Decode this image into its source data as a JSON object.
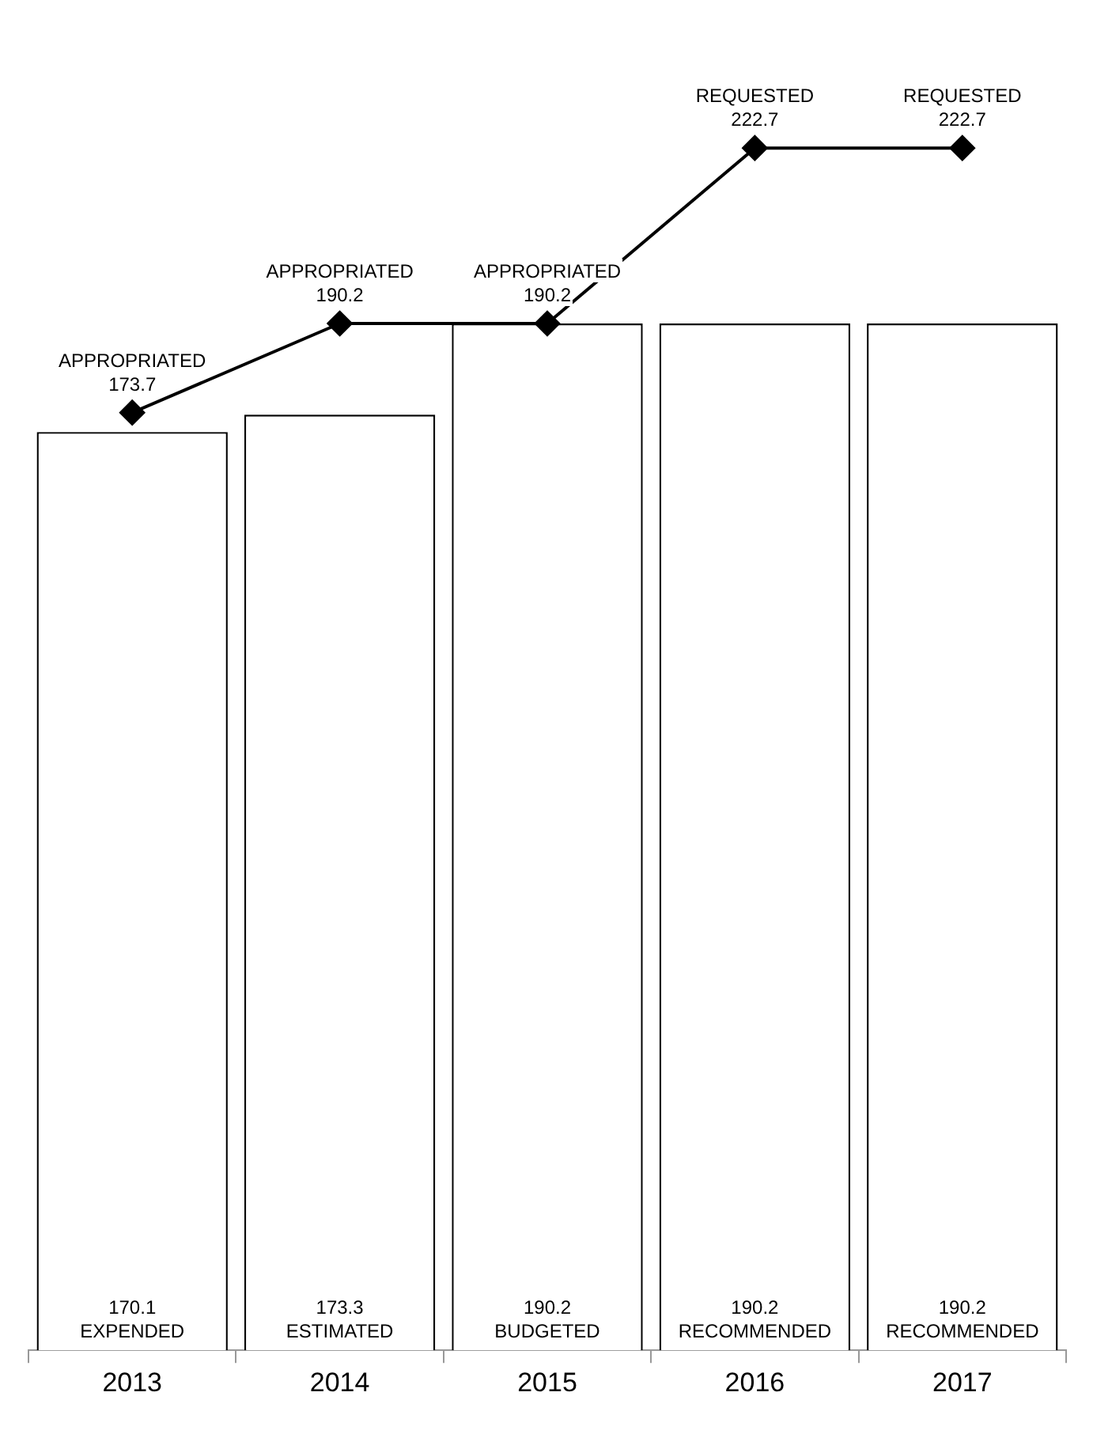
{
  "chart_data": {
    "type": "bar",
    "categories": [
      "2013",
      "2014",
      "2015",
      "2016",
      "2017"
    ],
    "series": [
      {
        "color": "#ffffff",
        "values": [
          170.1,
          173.3,
          190.2,
          190.2,
          190.2
        ],
        "value_labels": [
          "170.1\nEXPENDED",
          "173.3\nESTIMATED",
          "190.2\nBUDGETED",
          "190.2\nRECOMMENDED",
          "190.2\nRECOMMENDED"
        ]
      },
      {
        "type": "line",
        "color": "#000000",
        "values": [
          173.7,
          190.2,
          190.2,
          222.7,
          222.7
        ],
        "value_labels": [
          "APPROPRIATED\n173.7",
          "APPROPRIATED\n190.2",
          "APPROPRIATED\n190.2",
          "REQUESTED\n222.7",
          "REQUESTED\n222.7"
        ]
      }
    ],
    "marker": "diamond",
    "line_style": "solid",
    "grid": false,
    "legend": false,
    "tick_labels": "x"
  }
}
